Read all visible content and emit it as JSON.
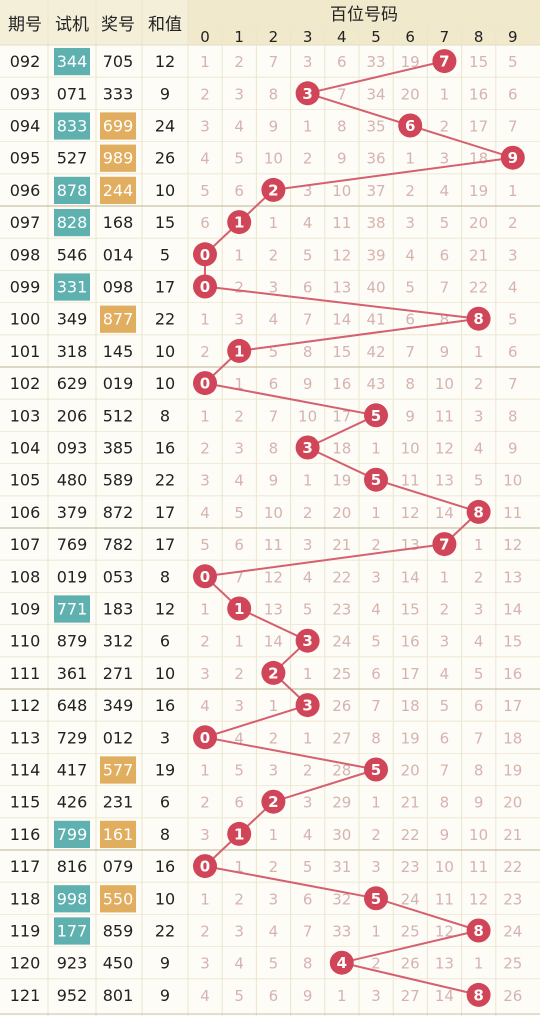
{
  "chart_data": {
    "type": "table",
    "headers": {
      "period": "期号",
      "trial": "试机",
      "prize": "奖号",
      "sum": "和值",
      "group": "百位号码",
      "digits": [
        "0",
        "1",
        "2",
        "3",
        "4",
        "5",
        "6",
        "7",
        "8",
        "9"
      ]
    },
    "rows": [
      {
        "period": "092",
        "trial": "344",
        "trial_hl": true,
        "prize": "705",
        "prize_hl": false,
        "sum": "12",
        "hit": 7,
        "cells": [
          "1",
          "2",
          "7",
          "3",
          "6",
          "33",
          "19",
          "7",
          "15",
          "5"
        ]
      },
      {
        "period": "093",
        "trial": "071",
        "trial_hl": false,
        "prize": "333",
        "prize_hl": false,
        "sum": "9",
        "hit": 3,
        "cells": [
          "2",
          "3",
          "8",
          "3",
          "7",
          "34",
          "20",
          "1",
          "16",
          "6"
        ]
      },
      {
        "period": "094",
        "trial": "833",
        "trial_hl": true,
        "prize": "699",
        "prize_hl": true,
        "sum": "24",
        "hit": 6,
        "cells": [
          "3",
          "4",
          "9",
          "1",
          "8",
          "35",
          "6",
          "2",
          "17",
          "7"
        ]
      },
      {
        "period": "095",
        "trial": "527",
        "trial_hl": false,
        "prize": "989",
        "prize_hl": true,
        "sum": "26",
        "hit": 9,
        "cells": [
          "4",
          "5",
          "10",
          "2",
          "9",
          "36",
          "1",
          "3",
          "18",
          "9"
        ]
      },
      {
        "period": "096",
        "trial": "878",
        "trial_hl": true,
        "prize": "244",
        "prize_hl": true,
        "sum": "10",
        "hit": 2,
        "cells": [
          "5",
          "6",
          "2",
          "3",
          "10",
          "37",
          "2",
          "4",
          "19",
          "1"
        ]
      },
      {
        "period": "097",
        "trial": "828",
        "trial_hl": true,
        "prize": "168",
        "prize_hl": false,
        "sum": "15",
        "hit": 1,
        "cells": [
          "6",
          "1",
          "1",
          "4",
          "11",
          "38",
          "3",
          "5",
          "20",
          "2"
        ]
      },
      {
        "period": "098",
        "trial": "546",
        "trial_hl": false,
        "prize": "014",
        "prize_hl": false,
        "sum": "5",
        "hit": 0,
        "cells": [
          "0",
          "1",
          "2",
          "5",
          "12",
          "39",
          "4",
          "6",
          "21",
          "3"
        ]
      },
      {
        "period": "099",
        "trial": "331",
        "trial_hl": true,
        "prize": "098",
        "prize_hl": false,
        "sum": "17",
        "hit": 0,
        "cells": [
          "0",
          "2",
          "3",
          "6",
          "13",
          "40",
          "5",
          "7",
          "22",
          "4"
        ]
      },
      {
        "period": "100",
        "trial": "349",
        "trial_hl": false,
        "prize": "877",
        "prize_hl": true,
        "sum": "22",
        "hit": 8,
        "cells": [
          "1",
          "3",
          "4",
          "7",
          "14",
          "41",
          "6",
          "8",
          "8",
          "5"
        ]
      },
      {
        "period": "101",
        "trial": "318",
        "trial_hl": false,
        "prize": "145",
        "prize_hl": false,
        "sum": "10",
        "hit": 1,
        "cells": [
          "2",
          "1",
          "5",
          "8",
          "15",
          "42",
          "7",
          "9",
          "1",
          "6"
        ]
      },
      {
        "period": "102",
        "trial": "629",
        "trial_hl": false,
        "prize": "019",
        "prize_hl": false,
        "sum": "10",
        "hit": 0,
        "cells": [
          "0",
          "1",
          "6",
          "9",
          "16",
          "43",
          "8",
          "10",
          "2",
          "7"
        ]
      },
      {
        "period": "103",
        "trial": "206",
        "trial_hl": false,
        "prize": "512",
        "prize_hl": false,
        "sum": "8",
        "hit": 5,
        "cells": [
          "1",
          "2",
          "7",
          "10",
          "17",
          "5",
          "9",
          "11",
          "3",
          "8"
        ]
      },
      {
        "period": "104",
        "trial": "093",
        "trial_hl": false,
        "prize": "385",
        "prize_hl": false,
        "sum": "16",
        "hit": 3,
        "cells": [
          "2",
          "3",
          "8",
          "3",
          "18",
          "1",
          "10",
          "12",
          "4",
          "9"
        ]
      },
      {
        "period": "105",
        "trial": "480",
        "trial_hl": false,
        "prize": "589",
        "prize_hl": false,
        "sum": "22",
        "hit": 5,
        "cells": [
          "3",
          "4",
          "9",
          "1",
          "19",
          "5",
          "11",
          "13",
          "5",
          "10"
        ]
      },
      {
        "period": "106",
        "trial": "379",
        "trial_hl": false,
        "prize": "872",
        "prize_hl": false,
        "sum": "17",
        "hit": 8,
        "cells": [
          "4",
          "5",
          "10",
          "2",
          "20",
          "1",
          "12",
          "14",
          "8",
          "11"
        ]
      },
      {
        "period": "107",
        "trial": "769",
        "trial_hl": false,
        "prize": "782",
        "prize_hl": false,
        "sum": "17",
        "hit": 7,
        "cells": [
          "5",
          "6",
          "11",
          "3",
          "21",
          "2",
          "13",
          "7",
          "1",
          "12"
        ]
      },
      {
        "period": "108",
        "trial": "019",
        "trial_hl": false,
        "prize": "053",
        "prize_hl": false,
        "sum": "8",
        "hit": 0,
        "cells": [
          "0",
          "7",
          "12",
          "4",
          "22",
          "3",
          "14",
          "1",
          "2",
          "13"
        ]
      },
      {
        "period": "109",
        "trial": "771",
        "trial_hl": true,
        "prize": "183",
        "prize_hl": false,
        "sum": "12",
        "hit": 1,
        "cells": [
          "1",
          "1",
          "13",
          "5",
          "23",
          "4",
          "15",
          "2",
          "3",
          "14"
        ]
      },
      {
        "period": "110",
        "trial": "879",
        "trial_hl": false,
        "prize": "312",
        "prize_hl": false,
        "sum": "6",
        "hit": 3,
        "cells": [
          "2",
          "1",
          "14",
          "3",
          "24",
          "5",
          "16",
          "3",
          "4",
          "15"
        ]
      },
      {
        "period": "111",
        "trial": "361",
        "trial_hl": false,
        "prize": "271",
        "prize_hl": false,
        "sum": "10",
        "hit": 2,
        "cells": [
          "3",
          "2",
          "2",
          "1",
          "25",
          "6",
          "17",
          "4",
          "5",
          "16"
        ]
      },
      {
        "period": "112",
        "trial": "648",
        "trial_hl": false,
        "prize": "349",
        "prize_hl": false,
        "sum": "16",
        "hit": 3,
        "cells": [
          "4",
          "3",
          "1",
          "3",
          "26",
          "7",
          "18",
          "5",
          "6",
          "17"
        ]
      },
      {
        "period": "113",
        "trial": "729",
        "trial_hl": false,
        "prize": "012",
        "prize_hl": false,
        "sum": "3",
        "hit": 0,
        "cells": [
          "0",
          "4",
          "2",
          "1",
          "27",
          "8",
          "19",
          "6",
          "7",
          "18"
        ]
      },
      {
        "period": "114",
        "trial": "417",
        "trial_hl": false,
        "prize": "577",
        "prize_hl": true,
        "sum": "19",
        "hit": 5,
        "cells": [
          "1",
          "5",
          "3",
          "2",
          "28",
          "5",
          "20",
          "7",
          "8",
          "19"
        ]
      },
      {
        "period": "115",
        "trial": "426",
        "trial_hl": false,
        "prize": "231",
        "prize_hl": false,
        "sum": "6",
        "hit": 2,
        "cells": [
          "2",
          "6",
          "2",
          "3",
          "29",
          "1",
          "21",
          "8",
          "9",
          "20"
        ]
      },
      {
        "period": "116",
        "trial": "799",
        "trial_hl": true,
        "prize": "161",
        "prize_hl": true,
        "sum": "8",
        "hit": 1,
        "cells": [
          "3",
          "1",
          "1",
          "4",
          "30",
          "2",
          "22",
          "9",
          "10",
          "21"
        ]
      },
      {
        "period": "117",
        "trial": "816",
        "trial_hl": false,
        "prize": "079",
        "prize_hl": false,
        "sum": "16",
        "hit": 0,
        "cells": [
          "0",
          "1",
          "2",
          "5",
          "31",
          "3",
          "23",
          "10",
          "11",
          "22"
        ]
      },
      {
        "period": "118",
        "trial": "998",
        "trial_hl": true,
        "prize": "550",
        "prize_hl": true,
        "sum": "10",
        "hit": 5,
        "cells": [
          "1",
          "2",
          "3",
          "6",
          "32",
          "5",
          "24",
          "11",
          "12",
          "23"
        ]
      },
      {
        "period": "119",
        "trial": "177",
        "trial_hl": true,
        "prize": "859",
        "prize_hl": false,
        "sum": "22",
        "hit": 8,
        "cells": [
          "2",
          "3",
          "4",
          "7",
          "33",
          "1",
          "25",
          "12",
          "8",
          "24"
        ]
      },
      {
        "period": "120",
        "trial": "923",
        "trial_hl": false,
        "prize": "450",
        "prize_hl": false,
        "sum": "9",
        "hit": 4,
        "cells": [
          "3",
          "4",
          "5",
          "8",
          "4",
          "2",
          "26",
          "13",
          "1",
          "25"
        ]
      },
      {
        "period": "121",
        "trial": "952",
        "trial_hl": false,
        "prize": "801",
        "prize_hl": false,
        "sum": "9",
        "hit": 8,
        "cells": [
          "4",
          "5",
          "6",
          "9",
          "1",
          "3",
          "27",
          "14",
          "8",
          "26"
        ]
      }
    ]
  },
  "colors": {
    "background": "#fdfcf6",
    "header_bg": "#f4efd8",
    "grid_line": "#ece6cf",
    "section_line": "#c9c2a6",
    "trial_highlight": "#5fb1b0",
    "prize_highlight": "#e1ad5f",
    "ball": "#d14558",
    "trend_line": "#d56070",
    "missing_text": "#d6b3b3"
  }
}
